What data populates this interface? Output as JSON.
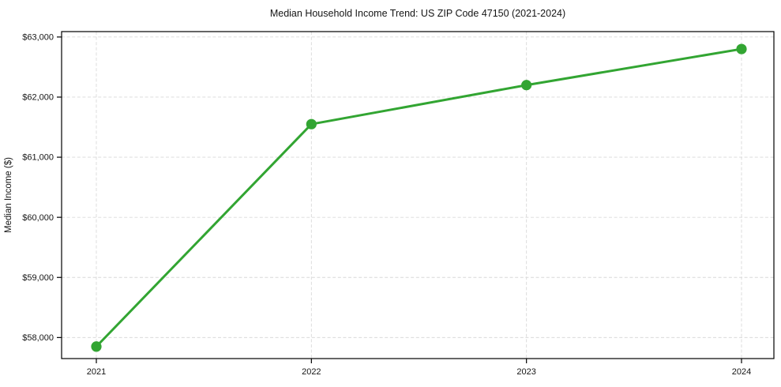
{
  "chart_data": {
    "type": "line",
    "title": "Median Household Income Trend: US ZIP Code 47150 (2021-2024)",
    "xlabel": "",
    "ylabel": "Median Income ($)",
    "categories": [
      "2021",
      "2022",
      "2023",
      "2024"
    ],
    "values": [
      57850,
      61550,
      62200,
      62800
    ],
    "yticks": [
      58000,
      59000,
      60000,
      61000,
      62000,
      63000
    ],
    "ytick_labels": [
      "$58,000",
      "$59,000",
      "$60,000",
      "$61,000",
      "$62,000",
      "$63,000"
    ],
    "ylim": [
      57650,
      63090
    ],
    "grid": true,
    "grid_style": "dashed",
    "legend": "none",
    "line_color": "#32a532",
    "marker_color": "#32a532",
    "marker": "circle",
    "grid_color": "#d9d9d9",
    "spine_color": "#000000",
    "background_color": "#ffffff"
  }
}
